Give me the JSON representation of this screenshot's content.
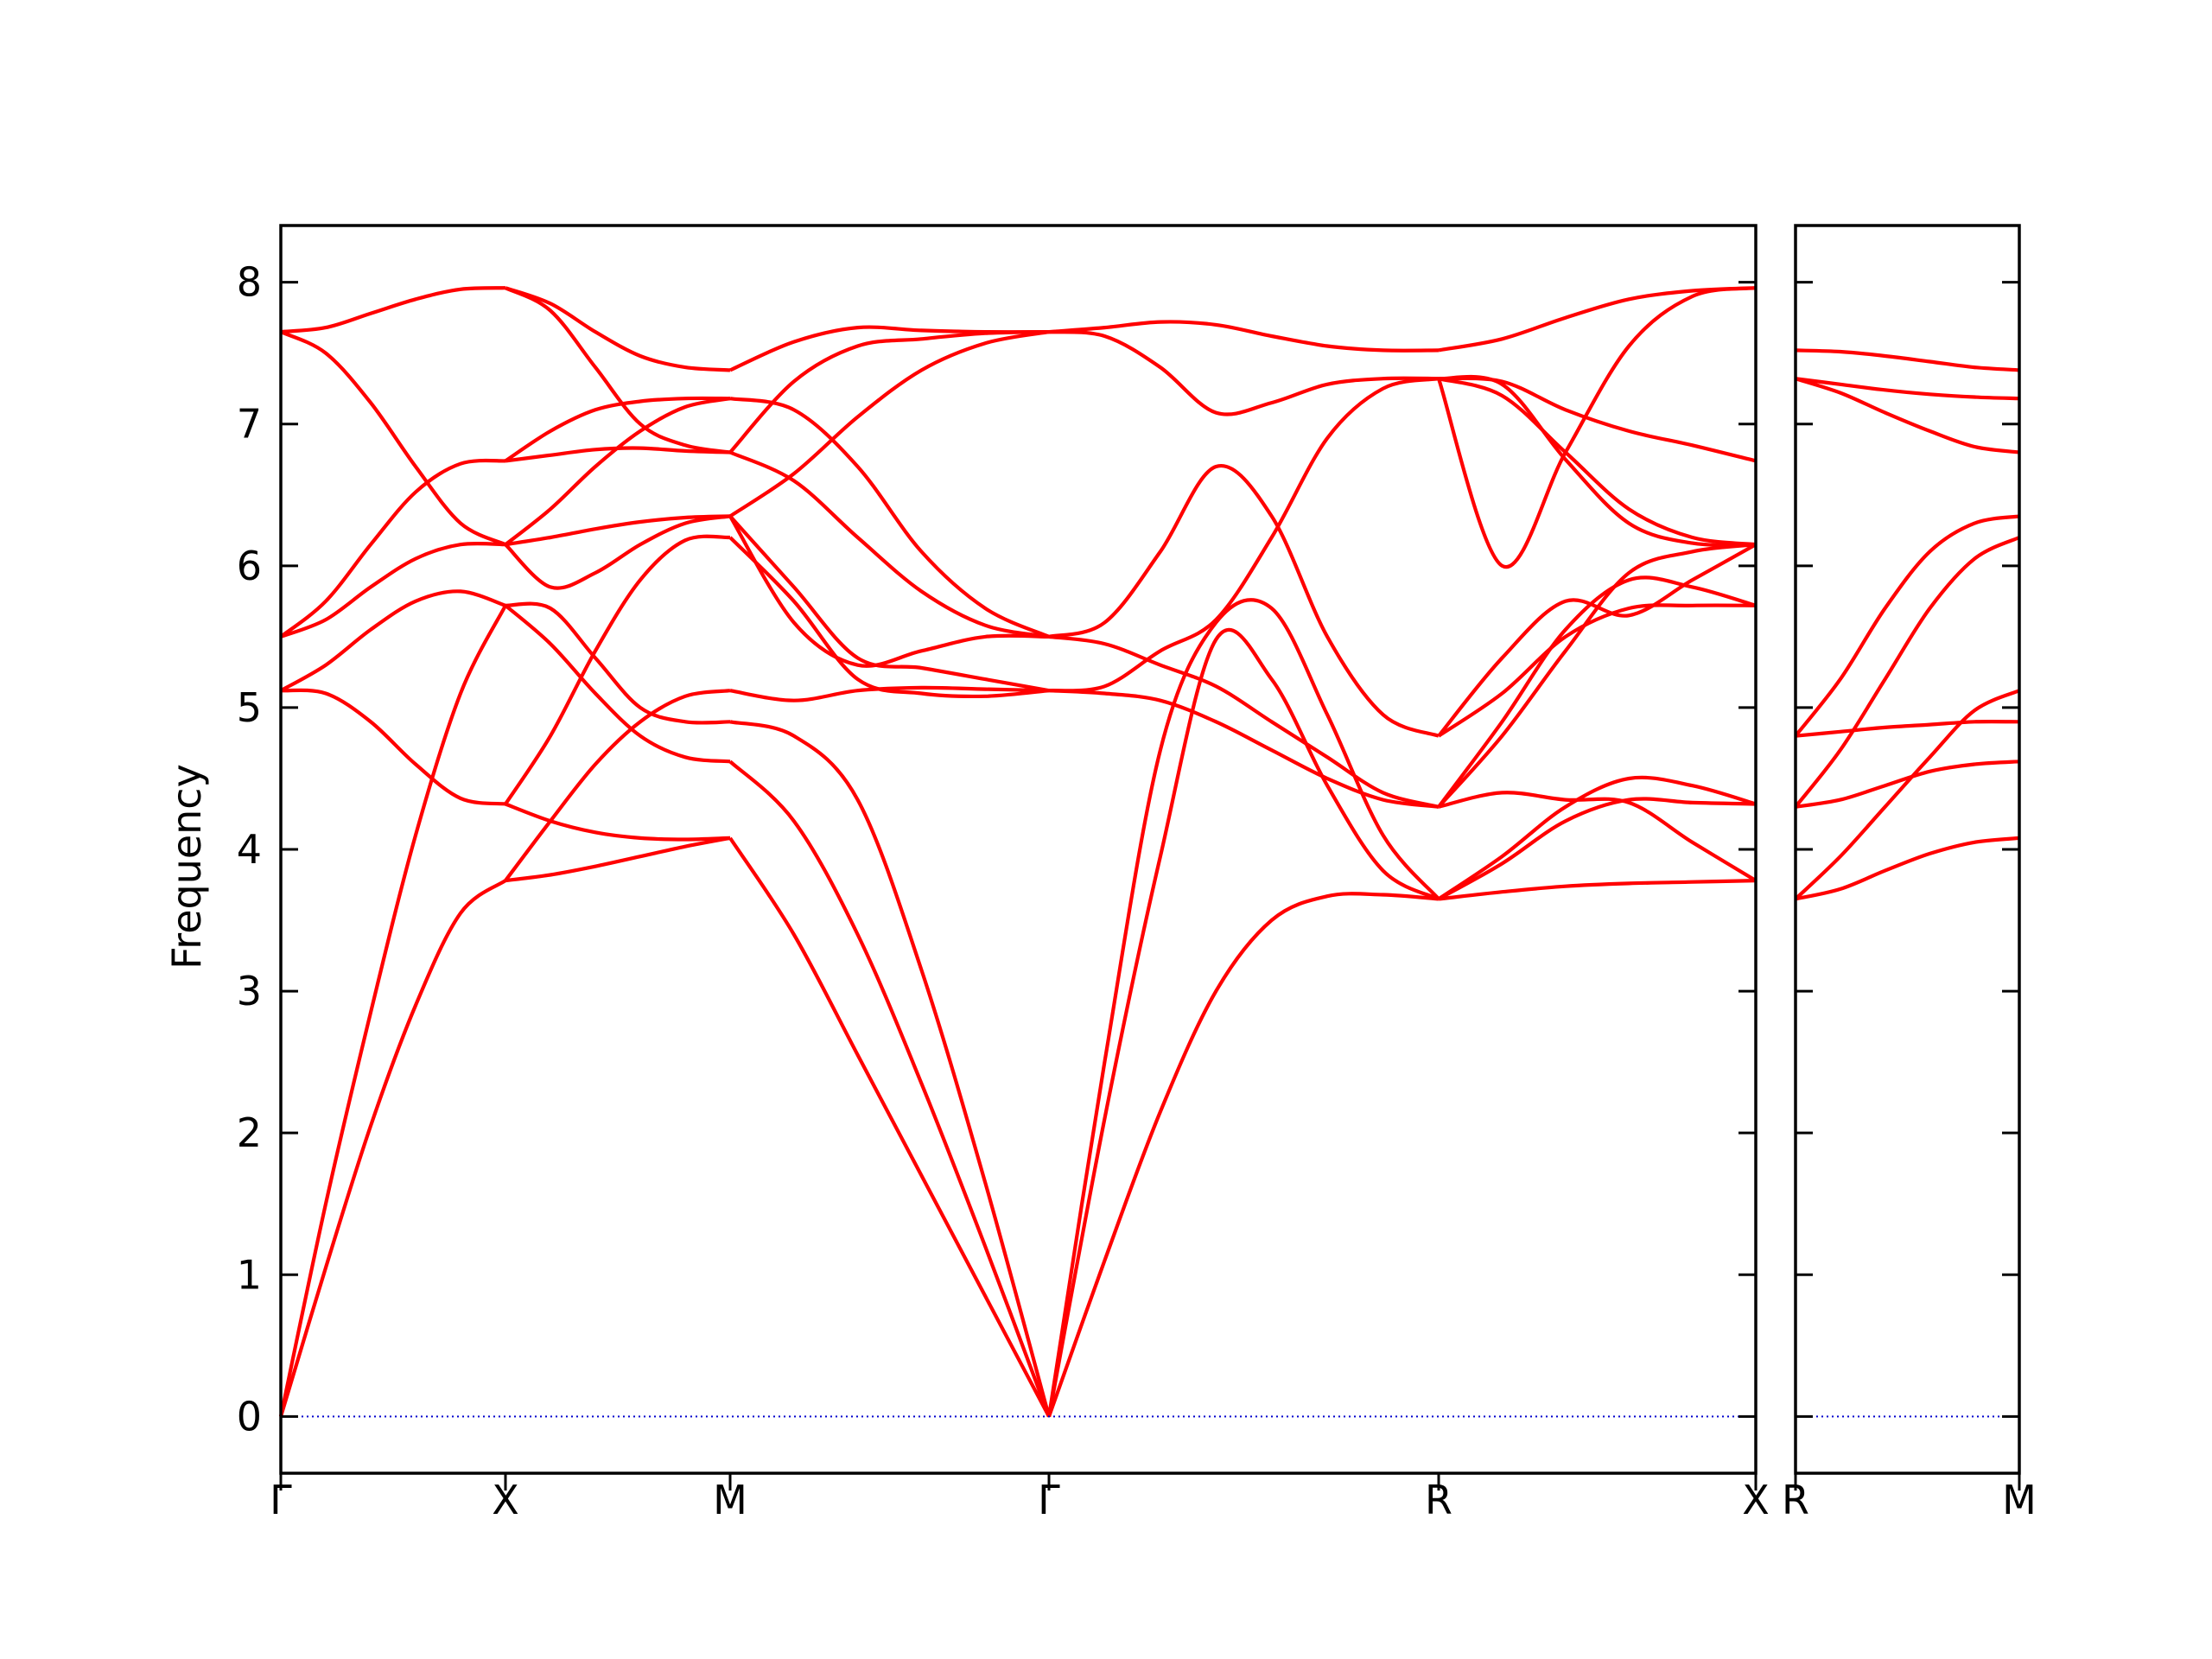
{
  "chart_data": {
    "type": "line",
    "ylabel": "Frequency",
    "ylim": [
      -0.4,
      8.4
    ],
    "yticks": [
      "0",
      "1",
      "2",
      "3",
      "4",
      "5",
      "6",
      "7",
      "8"
    ],
    "line_color": "#ff0000",
    "zero_line_color": "#0000cc",
    "grid": false,
    "panels": [
      {
        "name": "main",
        "xticks": [
          "Γ",
          "X",
          "M",
          "Γ",
          "R",
          "X"
        ],
        "segments": [
          {
            "from": "Γ",
            "to": "X",
            "bands": [
              [
                0.0,
                1.05,
                2.05,
                2.9,
                3.55,
                3.78
              ],
              [
                0.0,
                1.5,
                2.85,
                4.1,
                5.1,
                5.72
              ],
              [
                5.12,
                5.1,
                4.9,
                4.6,
                4.36,
                4.32
              ],
              [
                5.12,
                5.3,
                5.55,
                5.75,
                5.82,
                5.72
              ],
              [
                5.5,
                5.62,
                5.85,
                6.05,
                6.15,
                6.15
              ],
              [
                5.5,
                5.75,
                6.15,
                6.52,
                6.72,
                6.74
              ],
              [
                7.65,
                7.5,
                7.15,
                6.7,
                6.3,
                6.15
              ],
              [
                7.65,
                7.68,
                7.78,
                7.88,
                7.95,
                7.96
              ]
            ]
          },
          {
            "from": "X",
            "to": "M",
            "bands": [
              [
                3.78,
                3.82,
                3.88,
                3.95,
                4.02,
                4.08
              ],
              [
                4.32,
                4.2,
                4.12,
                4.08,
                4.07,
                4.08
              ],
              [
                5.72,
                5.45,
                5.1,
                4.8,
                4.65,
                4.62
              ],
              [
                5.72,
                5.7,
                5.35,
                5.0,
                4.9,
                4.9
              ],
              [
                3.78,
                4.2,
                4.6,
                4.9,
                5.08,
                5.12
              ],
              [
                4.32,
                4.8,
                5.4,
                5.9,
                6.18,
                6.2
              ],
              [
                6.15,
                6.2,
                6.26,
                6.31,
                6.34,
                6.35
              ],
              [
                6.15,
                5.85,
                5.95,
                6.15,
                6.3,
                6.35
              ],
              [
                6.74,
                6.78,
                6.82,
                6.83,
                6.81,
                6.8
              ],
              [
                6.15,
                6.4,
                6.7,
                6.95,
                7.12,
                7.18
              ],
              [
                6.74,
                6.95,
                7.1,
                7.16,
                7.18,
                7.18
              ],
              [
                7.96,
                7.8,
                7.4,
                7.0,
                6.85,
                6.8
              ],
              [
                7.96,
                7.85,
                7.65,
                7.48,
                7.4,
                7.38
              ]
            ]
          },
          {
            "from": "M",
            "to": "Γ",
            "bands": [
              [
                4.08,
                3.4,
                2.55,
                1.7,
                0.85,
                0.0
              ],
              [
                4.62,
                4.2,
                3.4,
                2.35,
                1.2,
                0.0
              ],
              [
                4.9,
                4.8,
                4.35,
                3.15,
                1.65,
                0.0
              ],
              [
                5.12,
                5.05,
                5.12,
                5.14,
                5.13,
                5.12
              ],
              [
                6.2,
                5.75,
                5.2,
                5.1,
                5.08,
                5.12
              ],
              [
                6.35,
                5.85,
                5.35,
                5.28,
                5.2,
                5.12
              ],
              [
                6.35,
                5.6,
                5.3,
                5.4,
                5.5,
                5.5
              ],
              [
                6.8,
                6.6,
                6.2,
                5.82,
                5.58,
                5.5
              ],
              [
                7.18,
                7.1,
                6.7,
                6.1,
                5.7,
                5.5
              ],
              [
                6.35,
                6.65,
                7.05,
                7.38,
                7.57,
                7.65
              ],
              [
                7.38,
                7.58,
                7.68,
                7.66,
                7.65,
                7.65
              ],
              [
                6.8,
                7.3,
                7.55,
                7.6,
                7.64,
                7.65
              ]
            ]
          },
          {
            "from": "Γ",
            "to": "R",
            "bands": [
              [
                0.0,
                1.1,
                2.15,
                3.0,
                3.5,
                3.67,
                3.68,
                3.65
              ],
              [
                0.0,
                2.1,
                3.95,
                5.48,
                5.2,
                4.45,
                3.85,
                3.65
              ],
              [
                0.0,
                2.5,
                4.7,
                5.6,
                5.7,
                4.95,
                4.1,
                3.65
              ],
              [
                5.12,
                5.1,
                5.05,
                4.9,
                4.7,
                4.5,
                4.35,
                4.3
              ],
              [
                5.5,
                5.45,
                5.3,
                5.15,
                4.9,
                4.65,
                4.4,
                4.3
              ],
              [
                5.5,
                5.6,
                6.1,
                6.7,
                6.35,
                5.5,
                4.95,
                4.8
              ],
              [
                5.12,
                5.15,
                5.4,
                5.62,
                6.2,
                6.9,
                7.25,
                7.32
              ],
              [
                7.65,
                7.68,
                7.72,
                7.7,
                7.62,
                7.55,
                7.52,
                7.52
              ],
              [
                7.65,
                7.62,
                7.4,
                7.08,
                7.15,
                7.28,
                7.32,
                7.32
              ]
            ]
          },
          {
            "from": "R",
            "to": "X",
            "bands": [
              [
                3.65,
                3.7,
                3.74,
                3.76,
                3.77,
                3.78
              ],
              [
                3.65,
                3.9,
                4.2,
                4.35,
                4.33,
                4.32
              ],
              [
                3.65,
                3.95,
                4.3,
                4.5,
                4.45,
                4.32
              ],
              [
                4.3,
                4.4,
                4.35,
                4.33,
                4.05,
                3.78
              ],
              [
                4.3,
                4.9,
                5.55,
                5.9,
                5.85,
                5.72
              ],
              [
                4.8,
                5.1,
                5.5,
                5.7,
                5.72,
                5.72
              ],
              [
                4.8,
                5.35,
                5.75,
                5.65,
                5.9,
                6.15
              ],
              [
                4.3,
                4.8,
                5.4,
                5.95,
                6.1,
                6.15
              ],
              [
                7.32,
                7.2,
                6.8,
                6.4,
                6.2,
                6.15
              ],
              [
                7.32,
                7.3,
                7.1,
                6.95,
                6.85,
                6.74
              ],
              [
                7.32,
                7.28,
                6.75,
                6.3,
                6.16,
                6.15
              ],
              [
                7.32,
                6.0,
                6.8,
                7.55,
                7.9,
                7.96
              ],
              [
                7.52,
                7.6,
                7.75,
                7.88,
                7.94,
                7.96
              ]
            ]
          }
        ]
      },
      {
        "name": "right",
        "xticks": [
          "R",
          "M"
        ],
        "segments": [
          {
            "from": "R",
            "to": "M",
            "bands": [
              [
                3.65,
                3.72,
                3.85,
                3.97,
                4.05,
                4.08
              ],
              [
                3.65,
                3.95,
                4.3,
                4.65,
                4.98,
                5.12
              ],
              [
                4.3,
                4.35,
                4.45,
                4.55,
                4.6,
                4.62
              ],
              [
                4.3,
                4.7,
                5.2,
                5.7,
                6.05,
                6.2
              ],
              [
                4.8,
                4.83,
                4.86,
                4.88,
                4.9,
                4.9
              ],
              [
                4.8,
                5.2,
                5.7,
                6.1,
                6.3,
                6.35
              ],
              [
                7.32,
                7.22,
                7.08,
                6.95,
                6.84,
                6.8
              ],
              [
                7.32,
                7.28,
                7.24,
                7.21,
                7.19,
                7.18
              ],
              [
                7.52,
                7.51,
                7.48,
                7.44,
                7.4,
                7.38
              ]
            ]
          }
        ]
      }
    ]
  }
}
